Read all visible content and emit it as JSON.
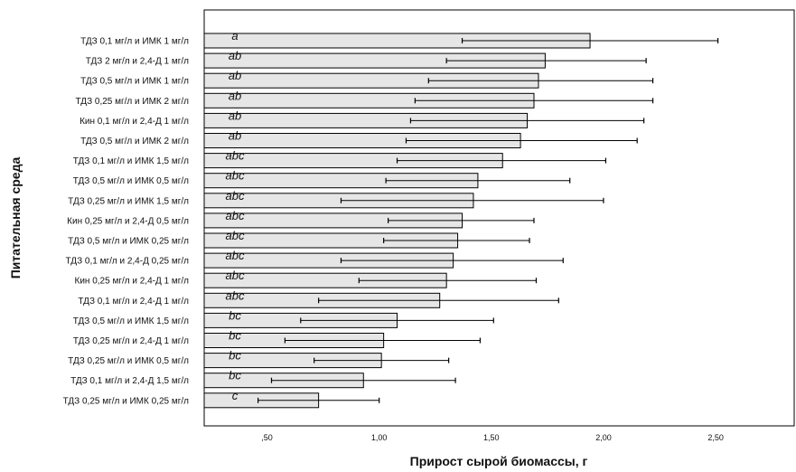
{
  "chart_data": {
    "type": "bar",
    "orientation": "horizontal",
    "xlabel": "Прирост сырой биомассы, г",
    "ylabel": "Питательная среда",
    "xlim": [
      0.22,
      2.85
    ],
    "x_ticks": [
      0.5,
      1.0,
      1.5,
      2.0,
      2.5
    ],
    "x_tick_labels": [
      ",50",
      "1,00",
      "1,50",
      "2,00",
      "2,50"
    ],
    "grid": false,
    "legend": "none",
    "bar_color": "#e6e6e6",
    "error_bars": true,
    "categories": [
      "ТДЗ 0,1 мг/л и ИМК 1 мг/л",
      "ТДЗ 2 мг/л и 2,4-Д 1 мг/л",
      "ТДЗ 0,5 мг/л и ИМК 1 мг/л",
      "ТДЗ 0,25 мг/л и ИМК 2 мг/л",
      "Кин 0,1 мг/л и 2,4-Д 1 мг/л",
      "ТДЗ 0,5 мг/л и ИМК 2 мг/л",
      "ТДЗ 0,1 мг/л и ИМК 1,5 мг/л",
      "ТДЗ 0,5 мг/л и ИМК 0,5 мг/л",
      "ТДЗ 0,25 мг/л и ИМК 1,5 мг/л",
      "Кин 0,25 мг/л и 2,4-Д 0,5 мг/л",
      "ТДЗ 0,5 мг/л и ИМК 0,25 мг/л",
      "ТДЗ 0,1 мг/л и 2,4-Д 0,25 мг/л",
      "Кин 0,25 мг/л и 2,4-Д 1 мг/л",
      "ТДЗ 0,1 мг/л и 2,4-Д 1 мг/л",
      "ТДЗ 0,5 мг/л и ИМК 1,5 мг/л",
      "ТДЗ 0,25 мг/л и 2,4-Д 1 мг/л",
      "ТДЗ 0,25 мг/л и ИМК 0,5 мг/л",
      "ТДЗ 0,1 мг/л и 2,4-Д 1,5 мг/л",
      "ТДЗ 0,25 мг/л и ИМК 0,25 мг/л"
    ],
    "values": [
      1.94,
      1.74,
      1.71,
      1.69,
      1.66,
      1.63,
      1.55,
      1.44,
      1.42,
      1.37,
      1.35,
      1.33,
      1.3,
      1.27,
      1.08,
      1.02,
      1.01,
      0.93,
      0.73
    ],
    "error_low": [
      1.37,
      1.3,
      1.22,
      1.16,
      1.14,
      1.12,
      1.08,
      1.03,
      0.83,
      1.04,
      1.02,
      0.83,
      0.91,
      0.73,
      0.65,
      0.58,
      0.71,
      0.52,
      0.46
    ],
    "error_high": [
      2.51,
      2.19,
      2.22,
      2.22,
      2.18,
      2.15,
      2.01,
      1.85,
      2.0,
      1.69,
      1.67,
      1.82,
      1.7,
      1.8,
      1.51,
      1.45,
      1.31,
      1.34,
      1.0
    ],
    "group_labels": [
      "a",
      "ab",
      "ab",
      "ab",
      "ab",
      "ab",
      "abc",
      "abc",
      "abc",
      "abc",
      "abc",
      "abc",
      "abc",
      "abc",
      "bc",
      "bc",
      "bc",
      "bc",
      "c"
    ]
  }
}
